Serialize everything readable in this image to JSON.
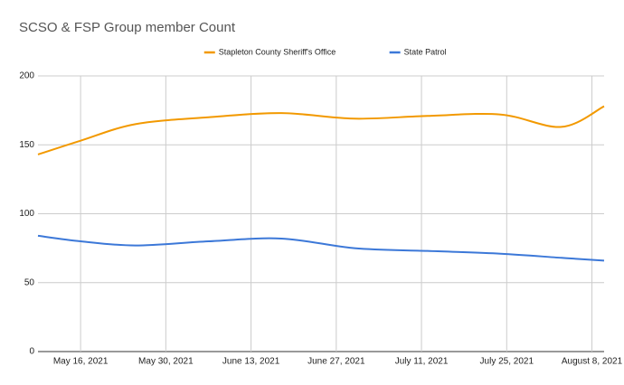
{
  "chart_data": {
    "type": "line",
    "title": "SCSO & FSP Group member Count",
    "x": [
      "2021-05-09",
      "2021-05-16",
      "2021-05-25",
      "2021-06-06",
      "2021-06-18",
      "2021-06-30",
      "2021-07-12",
      "2021-07-24",
      "2021-08-03",
      "2021-08-10"
    ],
    "series": [
      {
        "name": "Stapleton County Sheriff's Office",
        "color": "#f29900",
        "values": [
          143,
          153,
          165,
          170,
          173,
          169,
          171,
          172,
          163,
          178
        ]
      },
      {
        "name": "State Patrol",
        "color": "#3c78d8",
        "values": [
          84,
          80,
          77,
          80,
          82,
          75,
          73,
          71,
          68,
          66
        ]
      }
    ],
    "xlim": [
      "2021-05-09",
      "2021-08-10"
    ],
    "xticks": [
      {
        "value": "2021-05-16",
        "label": "May 16, 2021"
      },
      {
        "value": "2021-05-30",
        "label": "May 30, 2021"
      },
      {
        "value": "2021-06-13",
        "label": "June 13, 2021"
      },
      {
        "value": "2021-06-27",
        "label": "June 27, 2021"
      },
      {
        "value": "2021-07-11",
        "label": "July 11, 2021"
      },
      {
        "value": "2021-07-25",
        "label": "July 25, 2021"
      },
      {
        "value": "2021-08-08",
        "label": "August 8, 2021"
      }
    ],
    "ylim": [
      0,
      200
    ],
    "yticks": [
      0,
      50,
      100,
      150,
      200
    ],
    "grid": true,
    "legend": "top"
  }
}
